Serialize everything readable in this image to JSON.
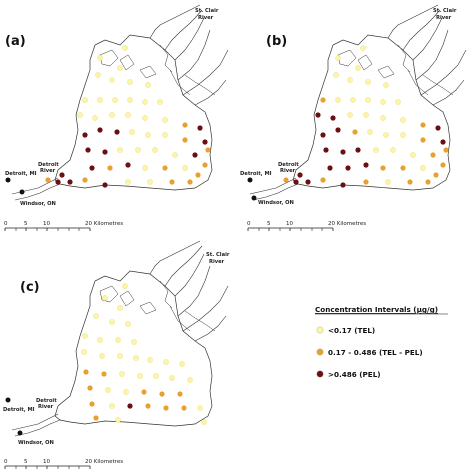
{
  "panels": [
    {
      "letter": "(a)",
      "sites": [
        "P",
        "P",
        "P",
        "P",
        "P",
        "P",
        "P",
        "P",
        "P",
        "P",
        "P",
        "P",
        "P",
        "P",
        "P",
        "P",
        "P",
        "P",
        "P",
        "O",
        "D",
        "D",
        "D",
        "D",
        "P",
        "P",
        "P",
        "O",
        "D",
        "D",
        "D",
        "P",
        "P",
        "P",
        "P",
        "D",
        "D",
        "O",
        "D",
        "P",
        "O",
        "P",
        "D",
        "O",
        "D",
        "P",
        "P",
        "O",
        "O",
        "O",
        "D",
        "D",
        "O",
        "O",
        "O"
      ]
    },
    {
      "letter": "(b)",
      "sites": [
        "P",
        "P",
        "P",
        "P",
        "P",
        "P",
        "P",
        "O",
        "P",
        "P",
        "P",
        "P",
        "P",
        "D",
        "D",
        "P",
        "P",
        "P",
        "P",
        "O",
        "D",
        "D",
        "D",
        "O",
        "P",
        "P",
        "P",
        "O",
        "D",
        "D",
        "D",
        "D",
        "P",
        "P",
        "P",
        "O",
        "D",
        "D",
        "D",
        "O",
        "O",
        "P",
        "D",
        "O",
        "D",
        "O",
        "P",
        "O",
        "O",
        "O",
        "D",
        "D",
        "O",
        "O",
        "O"
      ]
    },
    {
      "letter": "(c)",
      "sites": [
        "P",
        "P",
        "P",
        "P",
        "P",
        "P",
        "P",
        "P",
        "P",
        "P",
        "P",
        "P",
        "P",
        "P",
        "P",
        "P",
        "P",
        "O",
        "O",
        "P",
        "P",
        "P",
        "P",
        "P",
        "O",
        "P",
        "P",
        "O",
        "O",
        "O",
        "O",
        "P",
        "D",
        "O",
        "O",
        "O",
        "P",
        "O",
        "P",
        "P"
      ]
    }
  ],
  "places": {
    "stclair": [
      "St. Clair",
      "River"
    ],
    "detroit_river": [
      "Detroit",
      "River"
    ],
    "detroit_mi": "Detroit, MI",
    "windsor_on": "Windsor, ON"
  },
  "scale": {
    "ticks": [
      "0",
      "5",
      "10",
      "20 Kilometres"
    ]
  },
  "legend": {
    "title": "Concentration Intervals (µg/g)",
    "items": [
      {
        "key": "P",
        "label": "<0.17 (TEL)",
        "color": "#fdf5a0"
      },
      {
        "key": "O",
        "label": "0.17 - 0.486 (TEL - PEL)",
        "color": "#e8a030"
      },
      {
        "key": "D",
        "label": ">0.486 (PEL)",
        "color": "#6b0f12"
      }
    ]
  }
}
